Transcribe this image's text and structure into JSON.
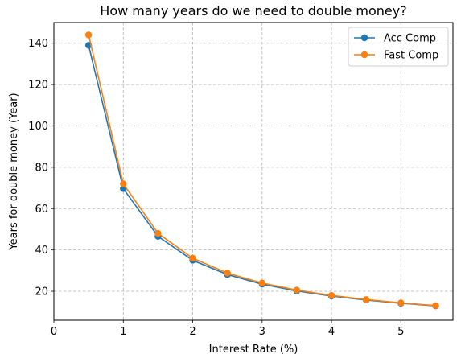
{
  "chart_data": {
    "type": "line",
    "title": "How many years do we need to double money?",
    "xlabel": "Interest Rate (%)",
    "ylabel": "Years for double money (Year)",
    "xlim": [
      0,
      5.75
    ],
    "ylim": [
      6,
      150
    ],
    "xticks": [
      0,
      1,
      2,
      3,
      4,
      5
    ],
    "yticks": [
      20,
      40,
      60,
      80,
      100,
      120,
      140
    ],
    "grid": true,
    "legend_position": "top-right",
    "x": [
      0.5,
      1.0,
      1.5,
      2.0,
      2.5,
      3.0,
      3.5,
      4.0,
      4.5,
      5.0,
      5.5
    ],
    "series": [
      {
        "name": "Acc Comp",
        "color": "#1f77b4",
        "values": [
          138.98,
          69.66,
          46.56,
          35.0,
          28.07,
          23.45,
          20.15,
          17.67,
          15.75,
          14.21,
          12.95
        ]
      },
      {
        "name": "Fast Comp",
        "color": "#ff7f0e",
        "values": [
          144.0,
          72.0,
          48.0,
          36.0,
          28.8,
          24.0,
          20.57,
          18.0,
          16.0,
          14.4,
          13.09
        ]
      }
    ]
  }
}
